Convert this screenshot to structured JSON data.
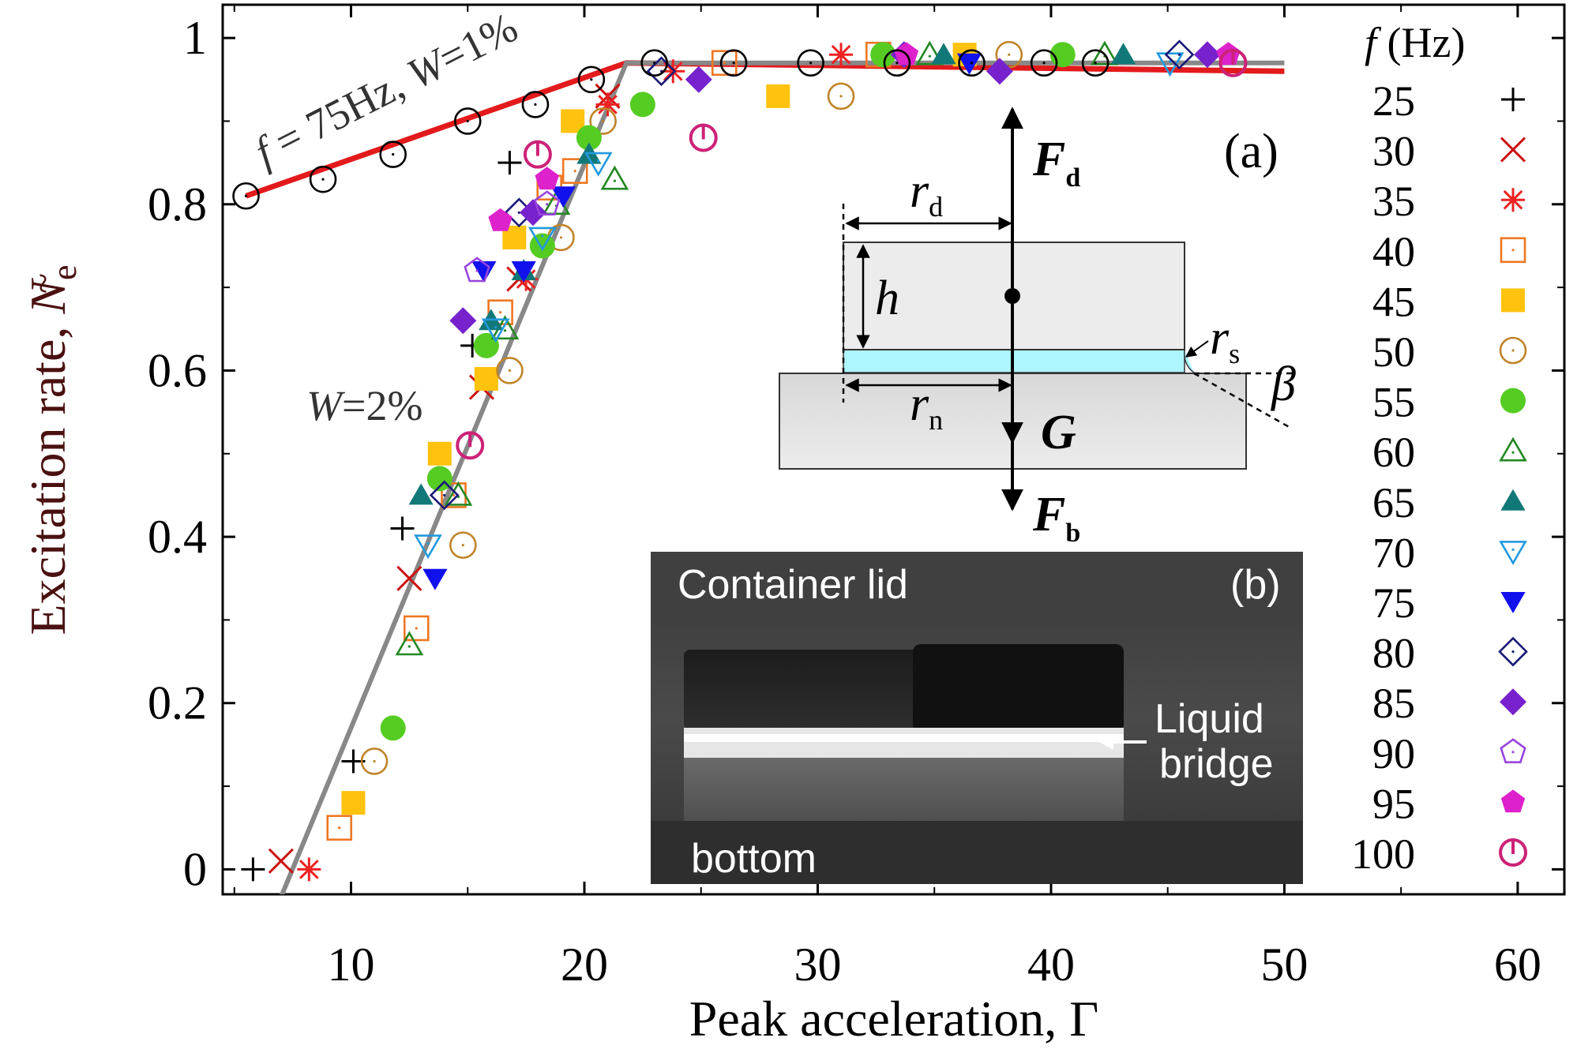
{
  "chart_data": {
    "type": "scatter",
    "xlabel": "Peak acceleration, Γ",
    "ylabel_prefix": "Excitation rate, ",
    "ylabel_symbol": "N",
    "ylabel_sub": "e",
    "xlim": [
      4.5,
      62
    ],
    "ylim": [
      -0.03,
      1.04
    ],
    "xticks": [
      10,
      20,
      30,
      40,
      50,
      60
    ],
    "yticks": [
      0,
      0.2,
      0.4,
      0.6,
      0.8,
      1
    ],
    "xtick_labels": [
      "10",
      "20",
      "30",
      "40",
      "50",
      "60"
    ],
    "ytick_labels": [
      "0",
      "0.2",
      "0.4",
      "0.6",
      "0.8",
      "1"
    ],
    "legend_position": "right",
    "legend_title_symbol": "f",
    "legend_title_unit": " (Hz)",
    "annotations": {
      "red_line_f": "f",
      "red_line_rest": " = 75Hz, ",
      "red_line_w": "W",
      "red_line_w_val": "=1%",
      "grey_line_w": "W",
      "grey_line_w_val": "=2%"
    },
    "fit_lines": [
      {
        "color": "#e31a1c",
        "x": [
          5.5,
          21.8,
          50
        ],
        "y": [
          0.81,
          0.97,
          0.96
        ]
      },
      {
        "color": "#888888",
        "x": [
          6.9,
          21.8,
          50
        ],
        "y": [
          -0.04,
          0.97,
          0.97
        ]
      }
    ],
    "series": [
      {
        "name": "25",
        "marker": "plus",
        "color": "#000000",
        "x": [
          5.8,
          10.1,
          12.2,
          15.2,
          16.8
        ],
        "y": [
          0.0,
          0.13,
          0.41,
          0.63,
          0.85
        ]
      },
      {
        "name": "30",
        "marker": "cross",
        "color": "#cc1111",
        "x": [
          7.0,
          12.5,
          15.6,
          17.2,
          21.0
        ],
        "y": [
          0.01,
          0.35,
          0.58,
          0.71,
          0.93
        ]
      },
      {
        "name": "35",
        "marker": "star",
        "color": "#ee2222",
        "x": [
          8.2,
          17.5,
          21.0,
          23.8,
          31.0
        ],
        "y": [
          0.0,
          0.71,
          0.92,
          0.96,
          0.98
        ]
      },
      {
        "name": "40",
        "marker": "square-open",
        "color": "#ee7722",
        "x": [
          9.5,
          12.8,
          14.4,
          16.4,
          18.5,
          19.6,
          26.0,
          32.6
        ],
        "y": [
          0.05,
          0.29,
          0.45,
          0.67,
          0.82,
          0.84,
          0.97,
          0.98
        ]
      },
      {
        "name": "45",
        "marker": "square",
        "color": "#ffc20e",
        "x": [
          10.1,
          13.8,
          15.8,
          17.0,
          19.5,
          28.3,
          36.3
        ],
        "y": [
          0.08,
          0.5,
          0.59,
          0.76,
          0.9,
          0.93,
          0.98
        ]
      },
      {
        "name": "50",
        "marker": "circle-open",
        "color": "#c0842a",
        "x": [
          11.0,
          14.8,
          16.8,
          19.0,
          20.8,
          31.0,
          38.2
        ],
        "y": [
          0.13,
          0.39,
          0.6,
          0.76,
          0.9,
          0.93,
          0.98
        ]
      },
      {
        "name": "55",
        "marker": "circle",
        "color": "#55cc22",
        "x": [
          11.8,
          13.8,
          15.8,
          18.2,
          20.2,
          22.5,
          32.8,
          40.5
        ],
        "y": [
          0.17,
          0.47,
          0.63,
          0.75,
          0.88,
          0.92,
          0.98,
          0.98
        ]
      },
      {
        "name": "60",
        "marker": "triangle-open",
        "color": "#228822",
        "x": [
          12.5,
          14.6,
          16.6,
          18.8,
          21.3,
          34.8,
          42.3
        ],
        "y": [
          0.27,
          0.45,
          0.65,
          0.8,
          0.83,
          0.98,
          0.98
        ]
      },
      {
        "name": "65",
        "marker": "triangle",
        "color": "#117777",
        "x": [
          13.0,
          16.0,
          17.4,
          20.2,
          35.4,
          43.1
        ],
        "y": [
          0.45,
          0.66,
          0.72,
          0.86,
          0.98,
          0.98
        ]
      },
      {
        "name": "70",
        "marker": "tri-down-open",
        "color": "#2299dd",
        "x": [
          13.3,
          16.2,
          18.2,
          20.6,
          45.1
        ],
        "y": [
          0.39,
          0.65,
          0.76,
          0.85,
          0.97
        ]
      },
      {
        "name": "75",
        "marker": "tri-down",
        "color": "#1111ee",
        "x": [
          13.6,
          15.7,
          17.4,
          19.1,
          36.5
        ],
        "y": [
          0.35,
          0.72,
          0.72,
          0.81,
          0.97
        ]
      },
      {
        "name": "80",
        "marker": "diamond-open",
        "color": "#1a1a77",
        "x": [
          14.0,
          17.2,
          23.3,
          45.5
        ],
        "y": [
          0.45,
          0.79,
          0.96,
          0.98
        ]
      },
      {
        "name": "85",
        "marker": "diamond",
        "color": "#7722cc",
        "x": [
          14.8,
          17.8,
          24.9,
          33.7,
          37.8,
          46.7
        ],
        "y": [
          0.66,
          0.79,
          0.95,
          0.98,
          0.96,
          0.98
        ]
      },
      {
        "name": "90",
        "marker": "pentagon-open",
        "color": "#9944dd",
        "x": [
          15.4,
          18.4
        ],
        "y": [
          0.72,
          0.8
        ]
      },
      {
        "name": "95",
        "marker": "pentagon",
        "color": "#dd22cc",
        "x": [
          16.4,
          18.4,
          33.8,
          47.6
        ],
        "y": [
          0.78,
          0.83,
          0.98,
          0.98
        ]
      },
      {
        "name": "100",
        "marker": "power",
        "color": "#cc2277",
        "x": [
          15.1,
          18.0,
          25.1,
          47.8
        ],
        "y": [
          0.51,
          0.86,
          0.88,
          0.97
        ]
      },
      {
        "name": "75 Hz, W=1%",
        "marker": "circle-open",
        "color": "#000000",
        "x": [
          5.5,
          8.8,
          11.8,
          15.0,
          17.9,
          20.3,
          23.0,
          26.4,
          29.7,
          33.4,
          36.6,
          39.7,
          41.9
        ],
        "y": [
          0.81,
          0.83,
          0.86,
          0.9,
          0.92,
          0.95,
          0.97,
          0.97,
          0.97,
          0.97,
          0.97,
          0.97,
          0.97
        ]
      }
    ],
    "inset_a": {
      "label": "(a)",
      "force_up": "F",
      "force_up_sub": "d",
      "force_down": "F",
      "force_down_sub": "b",
      "gravity": "G",
      "r_d": "r",
      "r_d_sub": "d",
      "r_n": "r",
      "r_n_sub": "n",
      "r_s": "r",
      "r_s_sub": "s",
      "h": "h",
      "beta": "β"
    },
    "inset_b": {
      "label": "(b)",
      "top_text": "Container lid",
      "bottom_text": "bottom",
      "bridge_line1": "Liquid",
      "bridge_line2": "bridge"
    }
  }
}
